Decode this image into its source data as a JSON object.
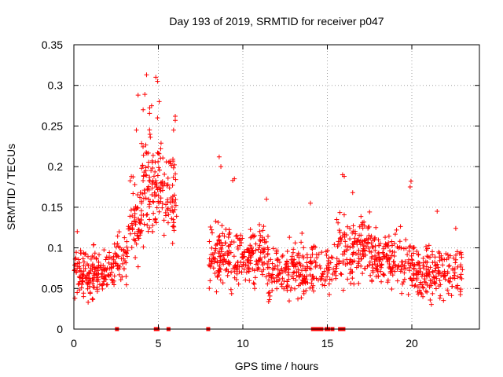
{
  "chart_data": {
    "type": "scatter",
    "title": "Day 193 of 2019, SRMTID for receiver p047",
    "xlabel": "GPS time / hours",
    "ylabel": "SRMTID / TECUs",
    "xlim": [
      0,
      24
    ],
    "ylim": [
      0,
      0.35
    ],
    "x_ticks": [
      0,
      5,
      10,
      15,
      20
    ],
    "y_ticks": [
      0,
      0.05,
      0.1,
      0.15,
      0.2,
      0.25,
      0.3,
      0.35
    ],
    "x_tick_labels": [
      "0",
      "5",
      "10",
      "15",
      "20"
    ],
    "y_tick_labels": [
      "0",
      "0.05",
      "0.1",
      "0.15",
      "0.2",
      "0.25",
      "0.3",
      "0.35"
    ],
    "grid": true,
    "marker": "+",
    "color": "#ff0000",
    "series": [
      {
        "name": "SRMTID",
        "clusters": [
          {
            "x_range": [
              0.0,
              2.4
            ],
            "y_center": 0.07,
            "y_spread": 0.025,
            "count": 180
          },
          {
            "x_range": [
              2.4,
              3.2
            ],
            "y_center": 0.09,
            "y_spread": 0.025,
            "count": 45
          },
          {
            "x_range": [
              3.2,
              4.0
            ],
            "y_center": 0.13,
            "y_spread": 0.04,
            "count": 60
          },
          {
            "x_range": [
              4.0,
              5.2
            ],
            "y_center": 0.18,
            "y_spread": 0.055,
            "count": 110
          },
          {
            "x_range": [
              5.2,
              6.1
            ],
            "y_center": 0.17,
            "y_spread": 0.045,
            "count": 60
          },
          {
            "x_range": [
              8.0,
              9.0
            ],
            "y_center": 0.09,
            "y_spread": 0.035,
            "count": 80
          },
          {
            "x_range": [
              9.0,
              11.5
            ],
            "y_center": 0.09,
            "y_spread": 0.03,
            "count": 170
          },
          {
            "x_range": [
              11.5,
              14.0
            ],
            "y_center": 0.07,
            "y_spread": 0.027,
            "count": 160
          },
          {
            "x_range": [
              14.0,
              15.5
            ],
            "y_center": 0.075,
            "y_spread": 0.025,
            "count": 70
          },
          {
            "x_range": [
              15.5,
              17.5
            ],
            "y_center": 0.1,
            "y_spread": 0.035,
            "count": 140
          },
          {
            "x_range": [
              17.5,
              20.0
            ],
            "y_center": 0.085,
            "y_spread": 0.03,
            "count": 160
          },
          {
            "x_range": [
              20.0,
              23.0
            ],
            "y_center": 0.07,
            "y_spread": 0.027,
            "count": 190
          }
        ],
        "peaks": [
          {
            "x": 4.3,
            "y": 0.313
          },
          {
            "x": 4.85,
            "y": 0.31
          },
          {
            "x": 4.95,
            "y": 0.305
          },
          {
            "x": 3.8,
            "y": 0.288
          },
          {
            "x": 4.2,
            "y": 0.289
          },
          {
            "x": 5.05,
            "y": 0.28
          },
          {
            "x": 4.6,
            "y": 0.275
          },
          {
            "x": 4.1,
            "y": 0.27
          },
          {
            "x": 6.0,
            "y": 0.262
          },
          {
            "x": 6.0,
            "y": 0.257
          },
          {
            "x": 4.95,
            "y": 0.26
          },
          {
            "x": 5.9,
            "y": 0.245
          },
          {
            "x": 3.7,
            "y": 0.245
          },
          {
            "x": 8.6,
            "y": 0.212
          },
          {
            "x": 8.7,
            "y": 0.2
          },
          {
            "x": 9.5,
            "y": 0.185
          },
          {
            "x": 9.4,
            "y": 0.183
          },
          {
            "x": 15.9,
            "y": 0.19
          },
          {
            "x": 16.0,
            "y": 0.188
          },
          {
            "x": 19.95,
            "y": 0.182
          },
          {
            "x": 19.9,
            "y": 0.175
          },
          {
            "x": 16.5,
            "y": 0.168
          },
          {
            "x": 11.4,
            "y": 0.16
          },
          {
            "x": 14.0,
            "y": 0.155
          },
          {
            "x": 21.5,
            "y": 0.145
          },
          {
            "x": 0.2,
            "y": 0.12
          },
          {
            "x": 13.5,
            "y": 0.118
          },
          {
            "x": 22.6,
            "y": 0.124
          }
        ],
        "zeros": [
          2.55,
          4.85,
          4.95,
          5.6,
          7.95,
          14.15,
          14.3,
          14.45,
          14.55,
          14.65,
          14.95,
          15.05,
          15.3,
          15.75,
          15.85,
          15.95
        ]
      }
    ]
  }
}
